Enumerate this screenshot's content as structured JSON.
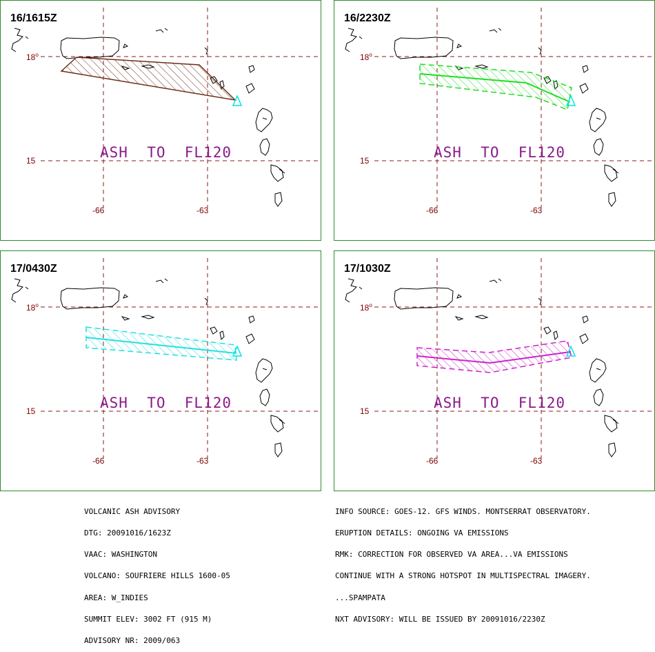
{
  "panels": [
    {
      "time": "16/1615Z",
      "ash_label": "ASH  TO  FL120",
      "line_color": "#6b2f1a",
      "hatch_color": "#6b2f1a",
      "shape": "polygon"
    },
    {
      "time": "16/2230Z",
      "ash_label": "ASH  TO  FL120",
      "line_color": "#22dd22",
      "hatch_color": "#22dd22",
      "shape": "band"
    },
    {
      "time": "17/0430Z",
      "ash_label": "ASH  TO  FL120",
      "line_color": "#22e0e0",
      "hatch_color": "#22e0e0",
      "shape": "band"
    },
    {
      "time": "17/1030Z",
      "ash_label": "ASH  TO  FL120",
      "line_color": "#cc22cc",
      "hatch_color": "#cc22cc",
      "shape": "band"
    }
  ],
  "grid": {
    "lat_labels": [
      "18",
      "15"
    ],
    "lon_labels": [
      "-66",
      "-63"
    ],
    "color": "#8b1a1a"
  },
  "volcano_marker_color": "#00e5e5",
  "footer_left": [
    "VOLCANIC ASH ADVISORY",
    "DTG: 20091016/1623Z",
    "VAAC: WASHINGTON",
    "VOLCANO: SOUFRIERE HILLS 1600-05",
    "AREA: W_INDIES",
    "SUMMIT ELEV: 3002 FT (915 M)",
    "ADVISORY NR: 2009/063"
  ],
  "footer_right": [
    "INFO SOURCE: GOES-12. GFS WINDS. MONTSERRAT OBSERVATORY.",
    "ERUPTION DETAILS: ONGOING VA EMISSIONS",
    "RMK: CORRECTION FOR OBSERVED VA AREA...VA EMISSIONS",
    "CONTINUE WITH A STRONG HOTSPOT IN MULTISPECTRAL IMAGERY.",
    "...SPAMPATA",
    "NXT ADVISORY: WILL BE ISSUED BY 20091016/2230Z"
  ]
}
